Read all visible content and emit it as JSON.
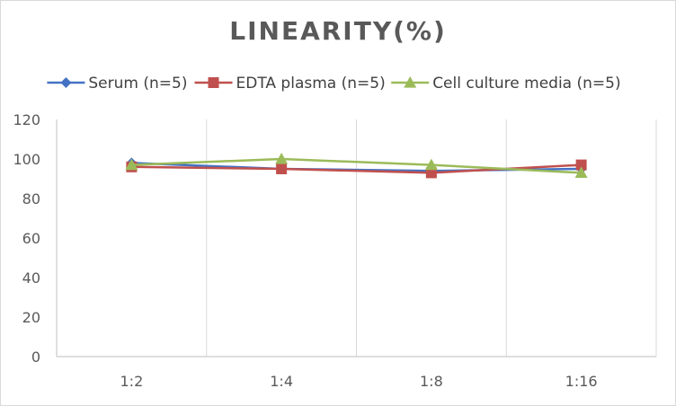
{
  "chart_data": {
    "type": "line",
    "title": "LINEARITY(%)",
    "categories": [
      "1:2",
      "1:4",
      "1:8",
      "1:16"
    ],
    "ylim": [
      0,
      120
    ],
    "yticks": [
      0,
      20,
      40,
      60,
      80,
      100,
      120
    ],
    "grid": "vertical",
    "legend_position": "top",
    "series": [
      {
        "name": "Serum (n=5)",
        "color": "#4472c4",
        "marker": "diamond",
        "values": [
          98,
          95,
          94,
          95
        ]
      },
      {
        "name": "EDTA plasma (n=5)",
        "color": "#c0504d",
        "marker": "square",
        "values": [
          96,
          95,
          93,
          97
        ]
      },
      {
        "name": "Cell culture media (n=5)",
        "color": "#9bbb59",
        "marker": "triangle",
        "values": [
          97,
          100,
          97,
          93
        ]
      }
    ]
  }
}
